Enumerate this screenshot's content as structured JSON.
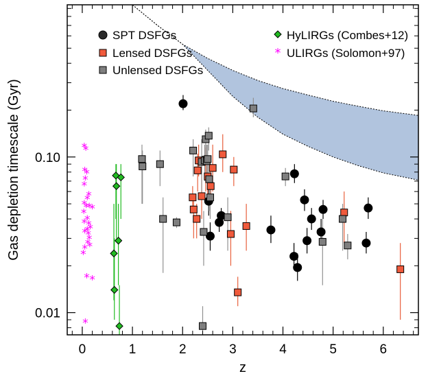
{
  "chart_data": {
    "type": "scatter",
    "title": "",
    "xlabel": "z",
    "ylabel": "Gas depletion timescale (Gyr)",
    "xlim": [
      -0.3,
      6.7
    ],
    "ylim": [
      0.0072,
      0.95
    ],
    "yscale": "log",
    "x_ticks": [
      0,
      1,
      2,
      3,
      4,
      5,
      6
    ],
    "x_tick_labels": [
      "0",
      "1",
      "2",
      "3",
      "4",
      "5",
      "6"
    ],
    "y_ticks": [
      0.01,
      0.1
    ],
    "y_tick_labels": [
      "0.01",
      "0.10"
    ],
    "legend_position": "top",
    "colors": {
      "spt": "#000000",
      "lensed": "#f05a3c",
      "lensed_err": "#e8603c",
      "unlensed": "#7f7f7f",
      "unlensed_err": "#909090",
      "hylirg": "#22bb22",
      "ulirg": "#ff00ff",
      "band": "#b1c4de"
    },
    "band": {
      "z": [
        0.7,
        1.0,
        1.5,
        2.0,
        2.5,
        3.0,
        3.5,
        4.0,
        4.5,
        5.0,
        5.5,
        6.0,
        6.7
      ],
      "upper": [
        1.2,
        0.95,
        0.7,
        0.53,
        0.43,
        0.36,
        0.31,
        0.275,
        0.25,
        0.228,
        0.212,
        0.198,
        0.185
      ],
      "lower": [
        1.2,
        0.95,
        0.7,
        0.53,
        0.36,
        0.245,
        0.18,
        0.14,
        0.117,
        0.1,
        0.088,
        0.079,
        0.071
      ]
    },
    "series": [
      {
        "name": "SPT DSFGs",
        "marker": "circle",
        "points": [
          {
            "x": 2.01,
            "y": 0.22,
            "lo": 0.2,
            "hi": 0.25
          },
          {
            "x": 2.52,
            "y": 0.052,
            "lo": 0.042,
            "hi": 0.062
          },
          {
            "x": 2.55,
            "y": 0.031,
            "lo": 0.025,
            "hi": 0.038
          },
          {
            "x": 2.73,
            "y": 0.038,
            "lo": 0.033,
            "hi": 0.044
          },
          {
            "x": 2.77,
            "y": 0.042,
            "lo": 0.037,
            "hi": 0.047
          },
          {
            "x": 3.76,
            "y": 0.034,
            "lo": 0.028,
            "hi": 0.042
          },
          {
            "x": 4.22,
            "y": 0.023,
            "lo": 0.019,
            "hi": 0.028
          },
          {
            "x": 4.23,
            "y": 0.078,
            "lo": 0.068,
            "hi": 0.09
          },
          {
            "x": 4.29,
            "y": 0.0195,
            "lo": 0.016,
            "hi": 0.024
          },
          {
            "x": 4.43,
            "y": 0.053,
            "lo": 0.045,
            "hi": 0.062
          },
          {
            "x": 4.48,
            "y": 0.029,
            "lo": 0.024,
            "hi": 0.035
          },
          {
            "x": 4.57,
            "y": 0.04,
            "lo": 0.034,
            "hi": 0.047
          },
          {
            "x": 4.76,
            "y": 0.033,
            "lo": 0.027,
            "hi": 0.04
          },
          {
            "x": 4.8,
            "y": 0.046,
            "lo": 0.04,
            "hi": 0.053
          },
          {
            "x": 5.66,
            "y": 0.028,
            "lo": 0.024,
            "hi": 0.033
          },
          {
            "x": 5.7,
            "y": 0.047,
            "lo": 0.04,
            "hi": 0.055
          }
        ]
      },
      {
        "name": "Lensed DSFGs",
        "marker": "square",
        "points": [
          {
            "x": 2.2,
            "y": 0.055,
            "lo": 0.045,
            "hi": 0.065
          },
          {
            "x": 2.22,
            "y": 0.046,
            "lo": 0.03,
            "hi": 0.058
          },
          {
            "x": 2.28,
            "y": 0.04,
            "lo": 0.03,
            "hi": 0.05
          },
          {
            "x": 2.3,
            "y": 0.082,
            "lo": 0.06,
            "hi": 0.105
          },
          {
            "x": 2.32,
            "y": 0.095,
            "lo": 0.075,
            "hi": 0.12
          },
          {
            "x": 2.38,
            "y": 0.056,
            "lo": 0.04,
            "hi": 0.09
          },
          {
            "x": 2.46,
            "y": 0.096,
            "lo": 0.06,
            "hi": 0.115
          },
          {
            "x": 2.5,
            "y": 0.075,
            "lo": 0.05,
            "hi": 0.1
          },
          {
            "x": 2.56,
            "y": 0.065,
            "lo": 0.05,
            "hi": 0.09
          },
          {
            "x": 2.6,
            "y": 0.085,
            "lo": 0.06,
            "hi": 0.12
          },
          {
            "x": 2.8,
            "y": 0.104,
            "lo": 0.08,
            "hi": 0.14
          },
          {
            "x": 2.96,
            "y": 0.032,
            "lo": 0.02,
            "hi": 0.045
          },
          {
            "x": 3.02,
            "y": 0.083,
            "lo": 0.065,
            "hi": 0.1
          },
          {
            "x": 3.1,
            "y": 0.0135,
            "lo": 0.011,
            "hi": 0.017
          },
          {
            "x": 3.27,
            "y": 0.036,
            "lo": 0.025,
            "hi": 0.05
          },
          {
            "x": 5.22,
            "y": 0.044,
            "lo": 0.028,
            "hi": 0.06
          },
          {
            "x": 6.34,
            "y": 0.019,
            "lo": 0.009,
            "hi": 0.028
          }
        ]
      },
      {
        "name": "Unlensed DSFGs",
        "marker": "square",
        "points": [
          {
            "x": 1.19,
            "y": 0.097,
            "lo": 0.05,
            "hi": 0.12
          },
          {
            "x": 1.2,
            "y": 0.087,
            "lo": 0.05,
            "hi": 0.11
          },
          {
            "x": 1.55,
            "y": 0.09,
            "lo": 0.065,
            "hi": 0.11
          },
          {
            "x": 1.61,
            "y": 0.04,
            "lo": 0.018,
            "hi": 0.055
          },
          {
            "x": 1.88,
            "y": 0.038,
            "lo": 0.035,
            "hi": 0.041
          },
          {
            "x": 2.21,
            "y": 0.11,
            "lo": 0.075,
            "hi": 0.13
          },
          {
            "x": 2.38,
            "y": 0.093,
            "lo": 0.06,
            "hi": 0.13
          },
          {
            "x": 2.4,
            "y": 0.0082,
            "lo": 0.007,
            "hi": 0.011
          },
          {
            "x": 2.42,
            "y": 0.033,
            "lo": 0.02,
            "hi": 0.045
          },
          {
            "x": 2.44,
            "y": 0.095,
            "lo": 0.07,
            "hi": 0.12
          },
          {
            "x": 2.46,
            "y": 0.13,
            "lo": 0.09,
            "hi": 0.15
          },
          {
            "x": 2.48,
            "y": 0.094,
            "lo": 0.07,
            "hi": 0.12
          },
          {
            "x": 2.5,
            "y": 0.097,
            "lo": 0.07,
            "hi": 0.12
          },
          {
            "x": 2.52,
            "y": 0.137,
            "lo": 0.11,
            "hi": 0.155
          },
          {
            "x": 2.53,
            "y": 0.072,
            "lo": 0.045,
            "hi": 0.1
          },
          {
            "x": 2.55,
            "y": 0.055,
            "lo": 0.04,
            "hi": 0.075
          },
          {
            "x": 2.9,
            "y": 0.041,
            "lo": 0.025,
            "hi": 0.055
          },
          {
            "x": 3.41,
            "y": 0.205,
            "lo": 0.18,
            "hi": 0.24
          },
          {
            "x": 4.05,
            "y": 0.075,
            "lo": 0.065,
            "hi": 0.085
          },
          {
            "x": 4.79,
            "y": 0.0285,
            "lo": 0.015,
            "hi": 0.04
          },
          {
            "x": 5.19,
            "y": 0.04,
            "lo": 0.025,
            "hi": 0.05
          },
          {
            "x": 5.29,
            "y": 0.027,
            "lo": 0.022,
            "hi": 0.032
          }
        ]
      },
      {
        "name": "HyLIRGs (Combes+12)",
        "marker": "diamond",
        "points": [
          {
            "x": 0.63,
            "y": 0.024,
            "lo": 0.012,
            "hi": 0.05
          },
          {
            "x": 0.64,
            "y": 0.014,
            "lo": 0.009,
            "hi": 0.03
          },
          {
            "x": 0.67,
            "y": 0.076,
            "lo": 0.04,
            "hi": 0.09
          },
          {
            "x": 0.68,
            "y": 0.065,
            "lo": 0.03,
            "hi": 0.09
          },
          {
            "x": 0.72,
            "y": 0.029,
            "lo": 0.015,
            "hi": 0.05
          },
          {
            "x": 0.74,
            "y": 0.0082,
            "lo": 0.006,
            "hi": 0.015
          },
          {
            "x": 0.77,
            "y": 0.074,
            "lo": 0.04,
            "hi": 0.09
          }
        ]
      },
      {
        "name": "ULIRGs (Solomon+97)",
        "marker": "star",
        "points": [
          {
            "x": 0.04,
            "y": 0.117
          },
          {
            "x": 0.07,
            "y": 0.112
          },
          {
            "x": 0.05,
            "y": 0.082
          },
          {
            "x": 0.09,
            "y": 0.079
          },
          {
            "x": 0.06,
            "y": 0.072
          },
          {
            "x": 0.04,
            "y": 0.066
          },
          {
            "x": 0.13,
            "y": 0.057
          },
          {
            "x": 0.1,
            "y": 0.054
          },
          {
            "x": 0.04,
            "y": 0.05
          },
          {
            "x": 0.08,
            "y": 0.048
          },
          {
            "x": 0.14,
            "y": 0.048
          },
          {
            "x": 0.2,
            "y": 0.047
          },
          {
            "x": 0.03,
            "y": 0.044
          },
          {
            "x": 0.1,
            "y": 0.04
          },
          {
            "x": 0.04,
            "y": 0.038
          },
          {
            "x": 0.13,
            "y": 0.037
          },
          {
            "x": 0.16,
            "y": 0.035
          },
          {
            "x": 0.05,
            "y": 0.033
          },
          {
            "x": 0.1,
            "y": 0.034
          },
          {
            "x": 0.12,
            "y": 0.032
          },
          {
            "x": 0.14,
            "y": 0.03
          },
          {
            "x": 0.11,
            "y": 0.028
          },
          {
            "x": 0.15,
            "y": 0.027
          },
          {
            "x": 0.05,
            "y": 0.026
          },
          {
            "x": 0.02,
            "y": 0.024
          },
          {
            "x": 0.09,
            "y": 0.017
          },
          {
            "x": 0.2,
            "y": 0.0165
          },
          {
            "x": 0.06,
            "y": 0.0087
          }
        ]
      }
    ]
  }
}
